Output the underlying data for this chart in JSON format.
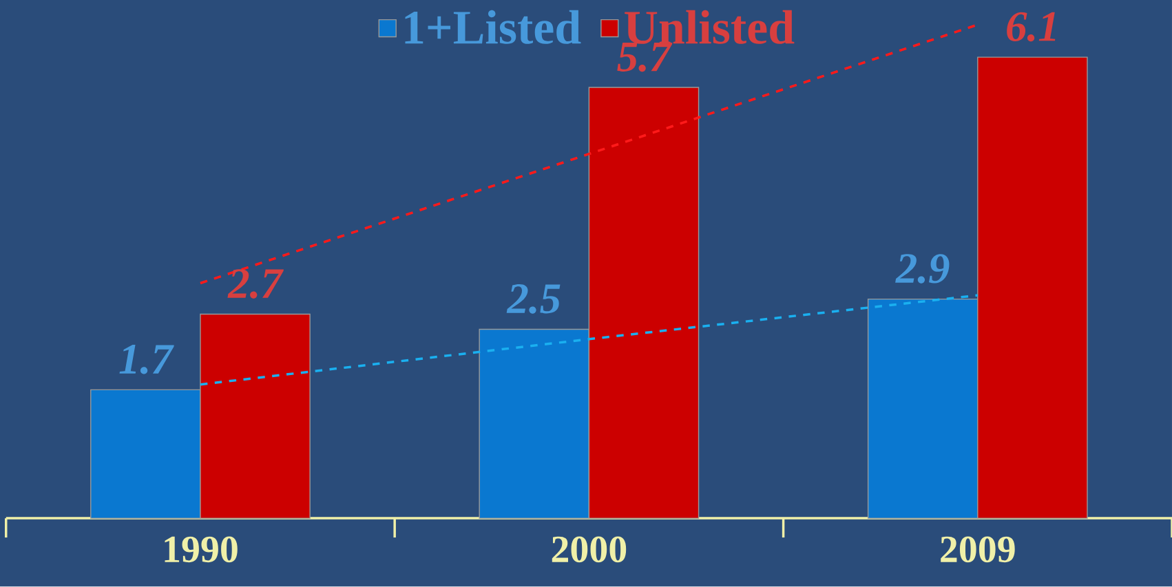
{
  "chart_data": {
    "type": "bar",
    "categories": [
      "1990",
      "2000",
      "2009"
    ],
    "series": [
      {
        "name": "1+Listed",
        "color": "#0a78d0",
        "values": [
          1.7,
          2.5,
          2.9
        ],
        "value_labels": [
          "1.7",
          "2.5",
          "2.9"
        ]
      },
      {
        "name": "Unlisted",
        "color": "#cc0000",
        "values": [
          2.7,
          5.7,
          6.1
        ],
        "value_labels": [
          "2.7",
          "5.7",
          "6.1"
        ]
      },
      {
        "type": "line",
        "line_style": "dashed",
        "color": "#1ab0f0",
        "values": [
          1.77,
          2.37,
          2.95
        ]
      },
      {
        "type": "line",
        "line_style": "dashed",
        "color": "#ff1a1a",
        "values": [
          3.11,
          4.82,
          6.53
        ]
      }
    ],
    "legend": "top"
  }
}
